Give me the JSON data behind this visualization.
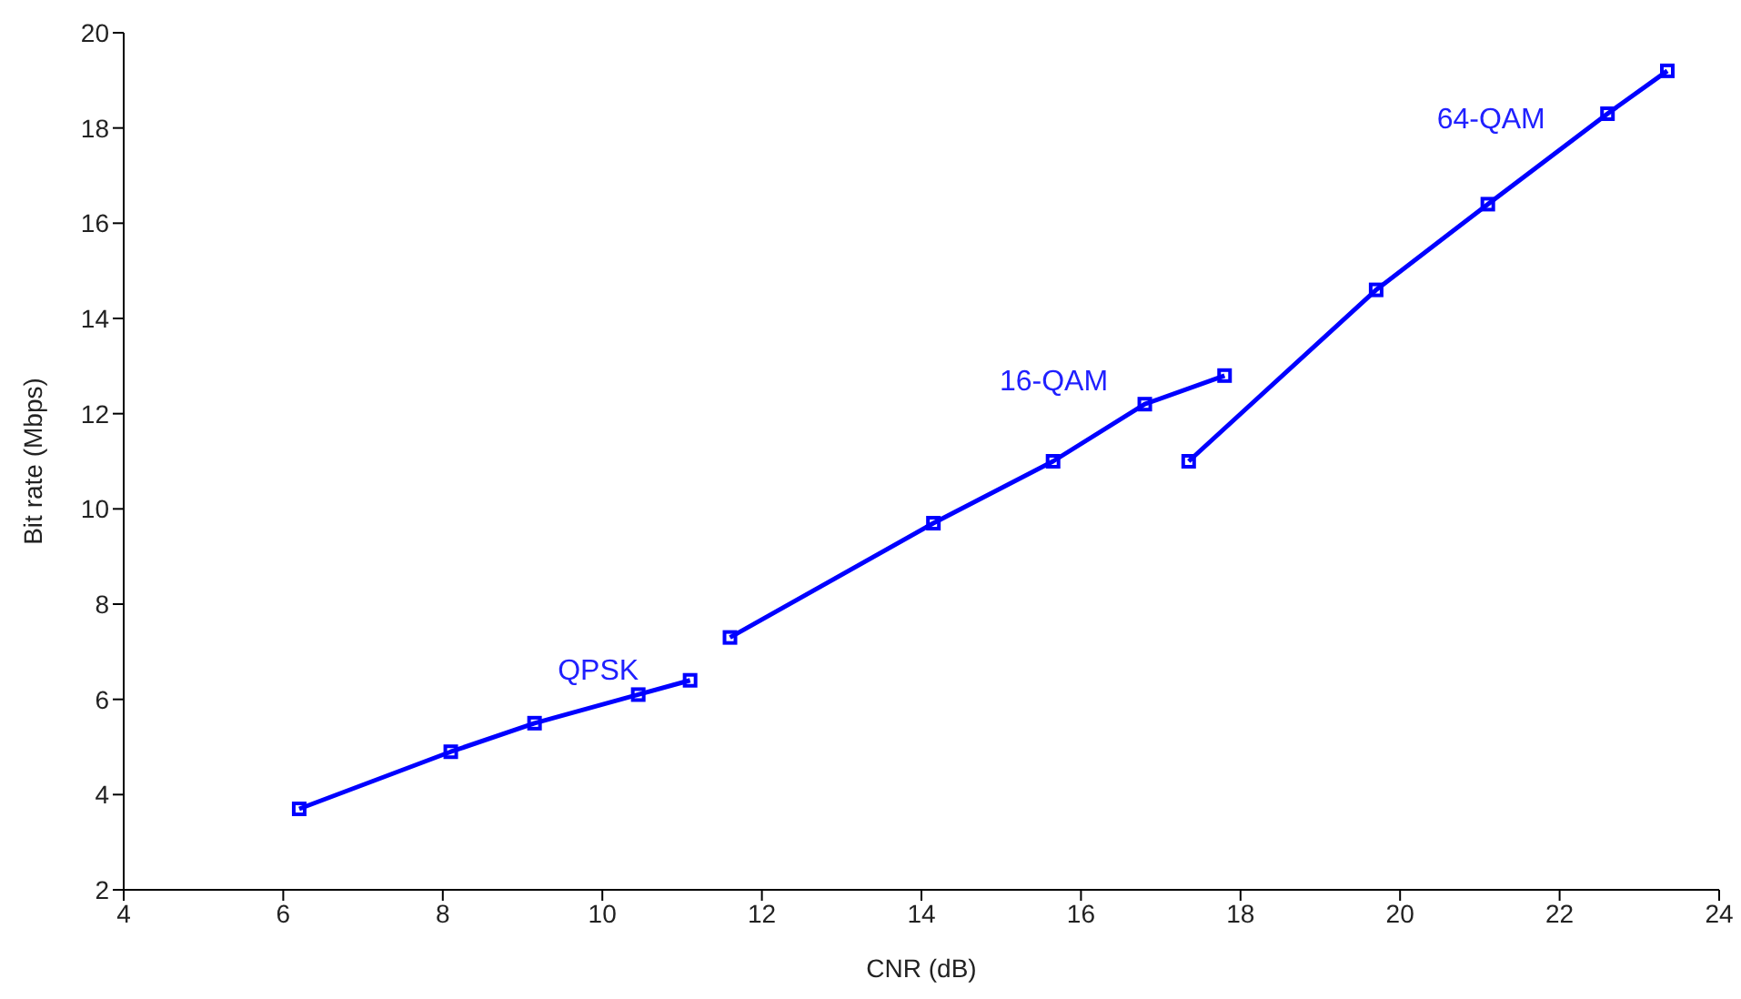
{
  "chart_data": {
    "type": "line",
    "xlabel": "CNR (dB)",
    "ylabel": "Bit rate (Mbps)",
    "xlim": [
      4,
      24
    ],
    "xticks": [
      4,
      6,
      8,
      10,
      12,
      14,
      16,
      18,
      20,
      22,
      24
    ],
    "ylim": [
      2,
      20
    ],
    "yticks": [
      2,
      4,
      6,
      8,
      10,
      12,
      14,
      16,
      18,
      20
    ],
    "grid": false,
    "marker": "square",
    "line_style": "solid",
    "series": [
      {
        "color": "#0000ff",
        "x": [
          6.2,
          8.1,
          9.15,
          10.45,
          11.1
        ],
        "values": [
          3.7,
          4.9,
          5.5,
          6.1,
          6.4
        ]
      },
      {
        "color": "#0000ff",
        "x": [
          11.6,
          14.15,
          15.65,
          16.8,
          17.8
        ],
        "values": [
          7.3,
          9.7,
          11.0,
          12.2,
          12.8
        ]
      },
      {
        "color": "#0000ff",
        "x": [
          17.35,
          19.7,
          21.1,
          22.6,
          23.35
        ],
        "values": [
          11.0,
          14.6,
          16.4,
          18.3,
          19.2
        ]
      }
    ],
    "annotations": [
      "QPSK",
      "16-QAM",
      "64-QAM"
    ]
  }
}
